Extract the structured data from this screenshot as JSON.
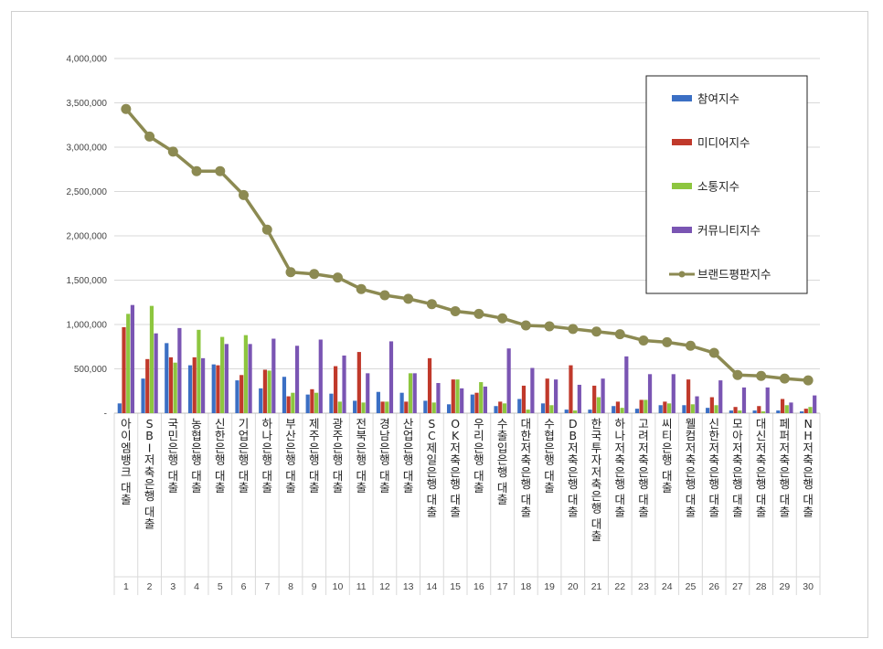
{
  "chart_data": {
    "type": "bar",
    "title": "",
    "xlabel": "",
    "ylabel": "",
    "ylim": [
      0,
      4000000
    ],
    "ytick_values": [
      0,
      500000,
      1000000,
      1500000,
      2000000,
      2500000,
      3000000,
      3500000,
      4000000
    ],
    "ytick_labels": [
      "-",
      "500,000",
      "1,000,000",
      "1,500,000",
      "2,000,000",
      "2,500,000",
      "3,000,000",
      "3,500,000",
      "4,000,000"
    ],
    "grid": true,
    "legend_position": "top-right",
    "ranks": [
      "1",
      "2",
      "3",
      "4",
      "5",
      "6",
      "7",
      "8",
      "9",
      "10",
      "11",
      "12",
      "13",
      "14",
      "15",
      "16",
      "17",
      "18",
      "19",
      "20",
      "21",
      "22",
      "23",
      "24",
      "25",
      "26",
      "27",
      "28",
      "29",
      "30"
    ],
    "categories": [
      "아이엠뱅크 대출",
      "SBI저축은행 대출",
      "국민은행 대출",
      "농협은행 대출",
      "신한은행 대출",
      "기업은행 대출",
      "하나은행 대출",
      "부산은행 대출",
      "제주은행 대출",
      "광주은행 대출",
      "전북은행 대출",
      "경남은행 대출",
      "산업은행 대출",
      "SC제일은행 대출",
      "OK저축은행 대출",
      "우리은행 대출",
      "수출입은행 대출",
      "대한저축은행 대출",
      "수협은행 대출",
      "DB저축은행 대출",
      "한국투자저축은행 대출",
      "하나저축은행 대출",
      "고려저축은행 대출",
      "씨티은행 대출",
      "웰컴저축은행 대출",
      "신한저축은행 대출",
      "모아저축은행 대출",
      "대신저축은행 대출",
      "페퍼저축은행 대출",
      "NH저축은행 대출"
    ],
    "series": [
      {
        "name": "참여지수",
        "type": "bar",
        "color": "#3b6fc4",
        "values": [
          110000,
          390000,
          790000,
          540000,
          550000,
          370000,
          280000,
          410000,
          210000,
          220000,
          140000,
          240000,
          230000,
          140000,
          100000,
          210000,
          80000,
          160000,
          110000,
          40000,
          40000,
          80000,
          50000,
          90000,
          90000,
          60000,
          30000,
          30000,
          30000,
          20000
        ]
      },
      {
        "name": "미디어지수",
        "type": "bar",
        "color": "#c0392b",
        "values": [
          970000,
          610000,
          630000,
          630000,
          540000,
          430000,
          490000,
          190000,
          270000,
          530000,
          690000,
          130000,
          130000,
          620000,
          380000,
          230000,
          130000,
          310000,
          390000,
          540000,
          310000,
          130000,
          150000,
          130000,
          380000,
          180000,
          70000,
          80000,
          160000,
          50000
        ]
      },
      {
        "name": "소통지수",
        "type": "bar",
        "color": "#8dc63f",
        "values": [
          1120000,
          1210000,
          570000,
          940000,
          860000,
          880000,
          480000,
          230000,
          230000,
          130000,
          120000,
          130000,
          450000,
          120000,
          380000,
          350000,
          110000,
          40000,
          90000,
          30000,
          180000,
          60000,
          150000,
          110000,
          100000,
          90000,
          30000,
          20000,
          90000,
          70000
        ]
      },
      {
        "name": "커뮤니티지수",
        "type": "bar",
        "color": "#7a55b3",
        "values": [
          1220000,
          900000,
          960000,
          620000,
          780000,
          780000,
          840000,
          760000,
          830000,
          650000,
          450000,
          810000,
          450000,
          340000,
          280000,
          300000,
          730000,
          510000,
          380000,
          320000,
          390000,
          640000,
          440000,
          440000,
          190000,
          370000,
          290000,
          290000,
          120000,
          200000
        ]
      },
      {
        "name": "브랜드평판지수",
        "type": "line",
        "color": "#8c8a52",
        "values": [
          3430000,
          3120000,
          2950000,
          2730000,
          2730000,
          2460000,
          2070000,
          1590000,
          1570000,
          1530000,
          1400000,
          1330000,
          1290000,
          1230000,
          1150000,
          1120000,
          1070000,
          990000,
          980000,
          950000,
          920000,
          890000,
          820000,
          800000,
          760000,
          680000,
          430000,
          420000,
          390000,
          370000
        ]
      }
    ]
  }
}
